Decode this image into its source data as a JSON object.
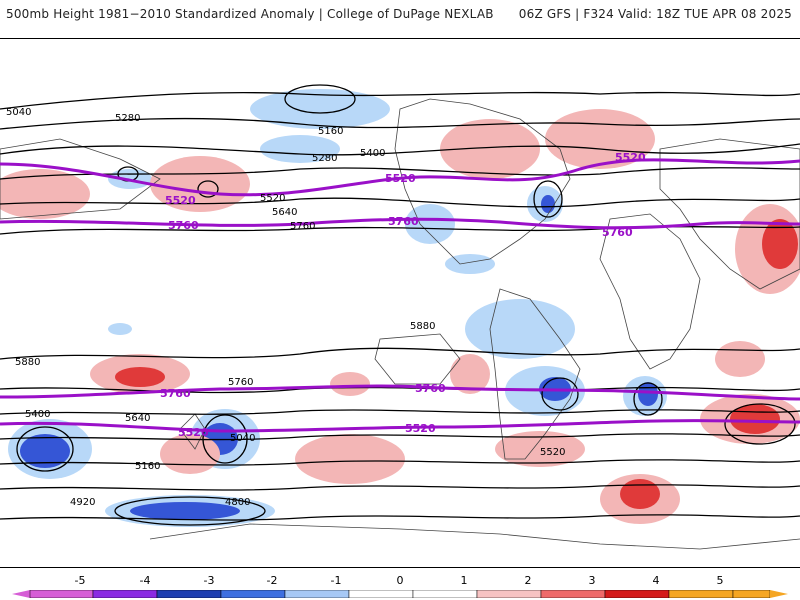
{
  "header": {
    "left_title": "500mb Height 1981−2010 Standardized Anomaly | College of DuPage NEXLAB",
    "right_title": "06Z GFS | F324 Valid: 18Z TUE APR 08 2025"
  },
  "contours": {
    "black_labels": [
      "5040",
      "5280",
      "5160",
      "5280",
      "5400",
      "5520",
      "5640",
      "5760",
      "5880",
      "4920",
      "4800",
      "5160",
      "5040",
      "5400",
      "5520",
      "5640",
      "5760",
      "5880"
    ],
    "purple_labels": [
      "5520",
      "5760",
      "5520",
      "5760",
      "5760",
      "5520",
      "5520",
      "5760",
      "5520",
      "5760"
    ]
  },
  "colorbar": {
    "ticks": [
      "-5",
      "-4",
      "-3",
      "-2",
      "-1",
      "0",
      "1",
      "2",
      "3",
      "4",
      "5"
    ],
    "colors": [
      "#d65ed6",
      "#8a2be2",
      "#1e3fb0",
      "#3d6fe0",
      "#a6c8f5",
      "#ffffff",
      "#ffffff",
      "#f7c3c3",
      "#ee6a6a",
      "#d41a1a",
      "#f5a623"
    ]
  },
  "map": {
    "land_color": "#444444",
    "positive_color": "#f3b6b6",
    "strong_positive_color": "#e03a3a",
    "negative_color": "#b8d8f8",
    "strong_negative_color": "#3556d6",
    "height_line_color": "#000000",
    "reference_line_color": "#9a10c8"
  }
}
